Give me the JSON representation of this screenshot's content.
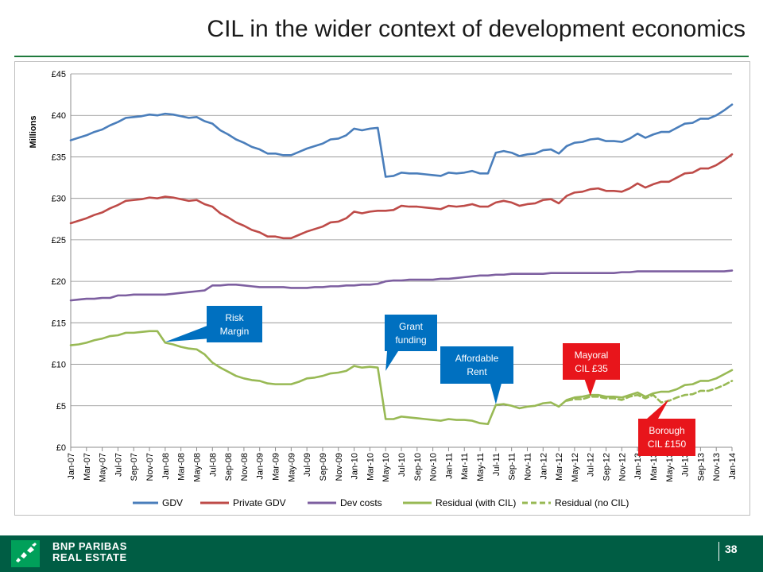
{
  "page": {
    "title": "CIL in the wider context of development economics",
    "brand_line1": "BNP PARIBAS",
    "brand_line2": "REAL ESTATE",
    "page_number": "38"
  },
  "colors": {
    "gdv": "#4a7ebb",
    "private_gdv": "#be4b48",
    "dev_costs": "#7d5fa0",
    "residual": "#98b954",
    "callout_blue": "#0070c0",
    "callout_red": "#e8151b",
    "footer": "#005d44"
  },
  "chart_data": {
    "type": "line",
    "title": "",
    "xlabel": "",
    "ylabel": "Millions",
    "ylim": [
      0,
      45
    ],
    "yticks": [
      "£0",
      "£5",
      "£10",
      "£15",
      "£20",
      "£25",
      "£30",
      "£35",
      "£40",
      "£45"
    ],
    "grid": "horizontal",
    "legend_position": "bottom",
    "x_tick_labels": [
      "Jan-07",
      "Mar-07",
      "May-07",
      "Jul-07",
      "Sep-07",
      "Nov-07",
      "Jan-08",
      "Mar-08",
      "May-08",
      "Jul-08",
      "Sep-08",
      "Nov-08",
      "Jan-09",
      "Mar-09",
      "May-09",
      "Jul-09",
      "Sep-09",
      "Nov-09",
      "Jan-10",
      "Mar-10",
      "May-10",
      "Jul-10",
      "Sep-10",
      "Nov-10",
      "Jan-11",
      "Mar-11",
      "May-11",
      "Jul-11",
      "Sep-11",
      "Nov-11",
      "Jan-12",
      "Mar-12",
      "May-12",
      "Jul-12",
      "Sep-12",
      "Nov-12",
      "Jan-13",
      "Mar-13",
      "May-13",
      "Jul-13",
      "Sep-13",
      "Nov-13",
      "Jan-14"
    ],
    "series": [
      {
        "name": "GDV",
        "color": "#4a7ebb",
        "dash": false,
        "values": [
          37.0,
          37.3,
          37.6,
          38.0,
          38.3,
          38.8,
          39.2,
          39.7,
          39.8,
          39.9,
          40.1,
          40.0,
          40.2,
          40.1,
          39.9,
          39.7,
          39.8,
          39.3,
          39.0,
          38.2,
          37.7,
          37.1,
          36.7,
          36.2,
          35.9,
          35.4,
          35.4,
          35.2,
          35.2,
          35.6,
          36.0,
          36.3,
          36.6,
          37.1,
          37.2,
          37.6,
          38.4,
          38.2,
          38.4,
          38.5,
          32.6,
          32.7,
          33.1,
          33.0,
          33.0,
          32.9,
          32.8,
          32.7,
          33.1,
          33.0,
          33.1,
          33.3,
          33.0,
          33.0,
          35.5,
          35.7,
          35.5,
          35.1,
          35.3,
          35.4,
          35.8,
          35.9,
          35.4,
          36.3,
          36.7,
          36.8,
          37.1,
          37.2,
          36.9,
          36.9,
          36.8,
          37.2,
          37.8,
          37.3,
          37.7,
          38.0,
          38.0,
          38.5,
          39.0,
          39.1,
          39.6,
          39.6,
          40.0,
          40.6,
          41.3
        ]
      },
      {
        "name": "Private GDV",
        "color": "#be4b48",
        "dash": false,
        "values": [
          27.0,
          27.3,
          27.6,
          28.0,
          28.3,
          28.8,
          29.2,
          29.7,
          29.8,
          29.9,
          30.1,
          30.0,
          30.2,
          30.1,
          29.9,
          29.7,
          29.8,
          29.3,
          29.0,
          28.2,
          27.7,
          27.1,
          26.7,
          26.2,
          25.9,
          25.4,
          25.4,
          25.2,
          25.2,
          25.6,
          26.0,
          26.3,
          26.6,
          27.1,
          27.2,
          27.6,
          28.4,
          28.2,
          28.4,
          28.5,
          28.5,
          28.6,
          29.1,
          29.0,
          29.0,
          28.9,
          28.8,
          28.7,
          29.1,
          29.0,
          29.1,
          29.3,
          29.0,
          29.0,
          29.5,
          29.7,
          29.5,
          29.1,
          29.3,
          29.4,
          29.8,
          29.9,
          29.4,
          30.3,
          30.7,
          30.8,
          31.1,
          31.2,
          30.9,
          30.9,
          30.8,
          31.2,
          31.8,
          31.3,
          31.7,
          32.0,
          32.0,
          32.5,
          33.0,
          33.1,
          33.6,
          33.6,
          34.0,
          34.6,
          35.3
        ]
      },
      {
        "name": "Dev costs",
        "color": "#7d5fa0",
        "dash": false,
        "values": [
          17.7,
          17.8,
          17.9,
          17.9,
          18.0,
          18.0,
          18.3,
          18.3,
          18.4,
          18.4,
          18.4,
          18.4,
          18.4,
          18.5,
          18.6,
          18.7,
          18.8,
          18.9,
          19.5,
          19.5,
          19.6,
          19.6,
          19.5,
          19.4,
          19.3,
          19.3,
          19.3,
          19.3,
          19.2,
          19.2,
          19.2,
          19.3,
          19.3,
          19.4,
          19.4,
          19.5,
          19.5,
          19.6,
          19.6,
          19.7,
          20.0,
          20.1,
          20.1,
          20.2,
          20.2,
          20.2,
          20.2,
          20.3,
          20.3,
          20.4,
          20.5,
          20.6,
          20.7,
          20.7,
          20.8,
          20.8,
          20.9,
          20.9,
          20.9,
          20.9,
          20.9,
          21.0,
          21.0,
          21.0,
          21.0,
          21.0,
          21.0,
          21.0,
          21.0,
          21.0,
          21.1,
          21.1,
          21.2,
          21.2,
          21.2,
          21.2,
          21.2,
          21.2,
          21.2,
          21.2,
          21.2,
          21.2,
          21.2,
          21.2,
          21.3
        ]
      },
      {
        "name": "Residual (with CIL)",
        "color": "#98b954",
        "dash": false,
        "values": [
          12.3,
          12.4,
          12.6,
          12.9,
          13.1,
          13.4,
          13.5,
          13.8,
          13.8,
          13.9,
          14.0,
          14.0,
          12.6,
          12.4,
          12.1,
          11.9,
          11.8,
          11.2,
          10.2,
          9.6,
          9.1,
          8.6,
          8.3,
          8.1,
          8.0,
          7.7,
          7.6,
          7.6,
          7.6,
          7.9,
          8.3,
          8.4,
          8.6,
          8.9,
          9.0,
          9.2,
          9.8,
          9.6,
          9.7,
          9.6,
          3.4,
          3.4,
          3.7,
          3.6,
          3.5,
          3.4,
          3.3,
          3.2,
          3.4,
          3.3,
          3.3,
          3.2,
          2.9,
          2.8,
          5.1,
          5.2,
          5.0,
          4.7,
          4.9,
          5.0,
          5.3,
          5.4,
          4.9,
          5.7,
          6.0,
          6.1,
          6.3,
          6.3,
          6.1,
          6.1,
          6.0,
          6.3,
          6.6,
          6.1,
          6.5,
          6.7,
          6.7,
          7.0,
          7.5,
          7.6,
          8.0,
          8.0,
          8.3,
          8.8,
          9.3
        ]
      },
      {
        "name": "Residual (no CIL)",
        "color": "#98b954",
        "dash": true,
        "start_index": 63,
        "values": [
          5.6,
          5.8,
          5.8,
          6.1,
          6.1,
          5.9,
          5.9,
          5.7,
          6.1,
          6.3,
          5.9,
          6.3,
          5.4,
          5.6,
          6.0,
          6.3,
          6.4,
          6.8,
          6.8,
          7.1,
          7.5,
          8.0
        ]
      }
    ],
    "annotations": [
      {
        "text": [
          "Risk",
          "Margin"
        ],
        "color": "#0070c0",
        "target_index": 12,
        "target_value": 12.7
      },
      {
        "text": [
          "Grant",
          "funding"
        ],
        "color": "#0070c0",
        "target_index": 40,
        "target_value": 9.2
      },
      {
        "text": [
          "Affordable",
          "Rent"
        ],
        "color": "#0070c0",
        "target_index": 54,
        "target_value": 5.2
      },
      {
        "text": [
          "Mayoral",
          "CIL £35"
        ],
        "color": "#e8151b",
        "target_index": 66,
        "target_value": 6.2
      },
      {
        "text": [
          "Borough",
          "CIL £150"
        ],
        "color": "#e8151b",
        "target_index": 76,
        "target_value": 5.8
      }
    ]
  }
}
